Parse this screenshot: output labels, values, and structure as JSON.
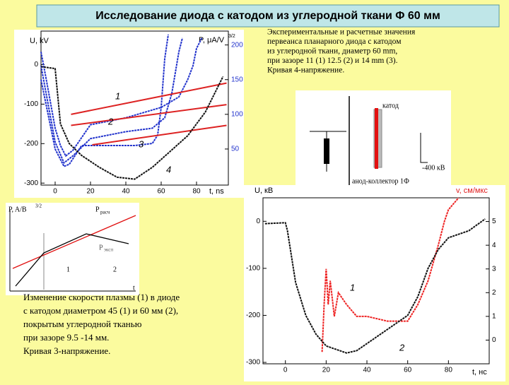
{
  "title": "Исследование диода с катодом из углеродной ткани Φ 60 мм",
  "caption_top": [
    "Экспериментальные и расчетные значения",
    "первеанса планарного диода с катодом",
    "из углеродной ткани, диаметр 60 mm,",
    "при зазоре 11 (1) 12.5 (2) и 14 mm (3).",
    "Кривая 4-напряжение."
  ],
  "caption_bottom": [
    "Изменение скорости плазмы (1) в диоде",
    "с катодом диаметром 45 (1) и 60  мм (2),",
    "покрытым углеродной тканью",
    "при зазоре 9.5 -14 мм.",
    "Кривая 3-напряжение."
  ],
  "diagram": {
    "labels": [
      "катод",
      "анод-коллектор 1Ф",
      "-400 кВ"
    ]
  },
  "schematic": {
    "labels": [
      "P, A/B",
      "3/2",
      "P",
      "расч",
      "P",
      "эксп",
      "1",
      "2",
      "t"
    ]
  },
  "chart_data": [
    {
      "type": "line",
      "ylabel": "U, kV",
      "xlabel": "t, ns",
      "y2label": "P, μA/V",
      "y2label_sup": "3/2",
      "xlim": [
        -8,
        98
      ],
      "xticks": [
        0,
        20,
        40,
        60,
        80
      ],
      "ylim": [
        -305,
        85
      ],
      "yticks": [
        0,
        -100,
        -200,
        -300
      ],
      "y2lim": [
        -2,
        220
      ],
      "y2ticks": [
        50,
        100,
        150,
        200
      ],
      "annotations": [
        "1",
        "2",
        "3",
        "4"
      ],
      "series": [
        {
          "color": "#2233cc",
          "axis": "y2",
          "x": [
            -8,
            -5,
            0,
            3,
            6,
            10,
            20,
            40,
            60,
            70,
            75,
            78,
            80,
            83
          ],
          "values": [
            190,
            150,
            80,
            55,
            40,
            48,
            85,
            95,
            110,
            125,
            150,
            170,
            195,
            210
          ]
        },
        {
          "color": "#2233cc",
          "axis": "y2",
          "x": [
            -8,
            0,
            5,
            10,
            20,
            40,
            55,
            62,
            66,
            70,
            72
          ],
          "values": [
            170,
            60,
            30,
            40,
            65,
            75,
            80,
            95,
            130,
            190,
            210
          ]
        },
        {
          "color": "#2233cc",
          "axis": "y2",
          "x": [
            -8,
            0,
            5,
            8,
            15,
            30,
            45,
            55,
            58,
            60,
            62,
            64
          ],
          "values": [
            150,
            50,
            25,
            28,
            55,
            55,
            55,
            58,
            70,
            110,
            180,
            215
          ]
        },
        {
          "color": "#dd2222",
          "axis": "y2",
          "x": [
            9,
            97
          ],
          "values": [
            100,
            145
          ]
        },
        {
          "color": "#dd2222",
          "axis": "y2",
          "x": [
            9,
            97
          ],
          "values": [
            84,
            114
          ]
        },
        {
          "color": "#dd2222",
          "axis": "y2",
          "x": [
            21,
            97
          ],
          "values": [
            56,
            84
          ]
        },
        {
          "color": "#111111",
          "x": [
            -8,
            0,
            3,
            8,
            15,
            25,
            35,
            45,
            55,
            65,
            75,
            85,
            95
          ],
          "values": [
            -5,
            -10,
            -150,
            -200,
            -230,
            -260,
            -285,
            -290,
            -260,
            -220,
            -180,
            -120,
            -30
          ]
        }
      ]
    },
    {
      "type": "line",
      "ylabel": "U, кВ",
      "xlabel": "t, нс",
      "y2label": "v, см/мкс",
      "xlim": [
        -11,
        100
      ],
      "xticks": [
        0,
        20,
        40,
        60,
        80
      ],
      "ylim": [
        -303,
        50
      ],
      "yticks": [
        0,
        -100,
        -200,
        -300
      ],
      "y2lim": [
        -1,
        6
      ],
      "y2ticks": [
        0,
        1,
        2,
        3,
        4,
        5
      ],
      "annotations": [
        "1",
        "2"
      ],
      "series": [
        {
          "color": "#ee2222",
          "axis": "y2",
          "x": [
            18,
            19,
            20,
            21,
            22,
            24,
            26,
            30,
            35,
            40,
            50,
            60,
            65,
            70,
            75,
            78,
            80,
            85
          ],
          "values": [
            -0.5,
            1.5,
            3,
            1.5,
            2.5,
            1,
            2,
            1.5,
            1,
            1,
            0.8,
            0.8,
            1.5,
            2.5,
            4,
            5,
            5.5,
            6
          ]
        },
        {
          "color": "#111111",
          "x": [
            -10,
            0,
            1,
            5,
            10,
            15,
            20,
            30,
            35,
            40,
            50,
            60,
            65,
            70,
            75,
            80,
            90,
            98
          ],
          "values": [
            -5,
            -3,
            -20,
            -130,
            -200,
            -240,
            -265,
            -280,
            -275,
            -260,
            -230,
            -200,
            -160,
            -100,
            -60,
            -35,
            -20,
            5
          ]
        }
      ]
    }
  ]
}
